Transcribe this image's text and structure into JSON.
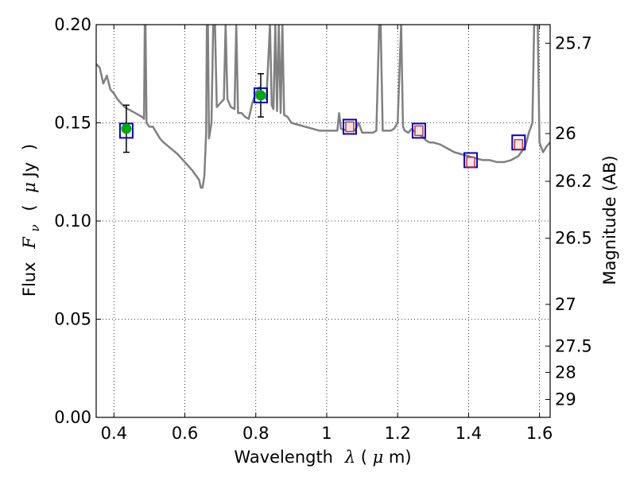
{
  "chart_data": {
    "type": "scatter",
    "xlabel": {
      "pre": "Wavelength",
      "sym": "λ",
      "open": " (",
      "mu": "μ",
      "unit": "m)"
    },
    "ylabel": {
      "pre": "Flux",
      "F": "F",
      "sub": "ν",
      "open": "(",
      "mu": "μ",
      "unit": "Jy",
      "close": ")"
    },
    "ylabel_right": "Magnitude (AB)",
    "xlim": [
      0.35,
      1.63
    ],
    "ylim": [
      0.0,
      0.2
    ],
    "xticks": [
      0.4,
      0.6,
      0.8,
      1.0,
      1.2,
      1.4,
      1.6
    ],
    "xtick_labels": [
      "0.4",
      "0.6",
      "0.8",
      "1",
      "1.2",
      "1.4",
      "1.6"
    ],
    "yticks": [
      0.0,
      0.05,
      0.1,
      0.15,
      0.2
    ],
    "ytick_labels": [
      "0.00",
      "0.05",
      "0.10",
      "0.15",
      "0.20"
    ],
    "right_ticks": [
      {
        "label": "25.7",
        "mag": 25.7
      },
      {
        "label": "26",
        "mag": 26.0
      },
      {
        "label": "26.2",
        "mag": 26.2
      },
      {
        "label": "26.5",
        "mag": 26.5
      },
      {
        "label": "27",
        "mag": 27.0
      },
      {
        "label": "27.5",
        "mag": 27.5
      },
      {
        "label": "28",
        "mag": 28.0
      },
      {
        "label": "29",
        "mag": 29.0
      }
    ],
    "grid": true,
    "series": [
      {
        "role": "model-spectrum",
        "style": "line",
        "color": "#808080",
        "points": [
          [
            0.35,
            0.18
          ],
          [
            0.36,
            0.178
          ],
          [
            0.37,
            0.17
          ],
          [
            0.38,
            0.174
          ],
          [
            0.39,
            0.167
          ],
          [
            0.4,
            0.165
          ],
          [
            0.41,
            0.162
          ],
          [
            0.42,
            0.16
          ],
          [
            0.43,
            0.158
          ],
          [
            0.44,
            0.157
          ],
          [
            0.45,
            0.156
          ],
          [
            0.46,
            0.155
          ],
          [
            0.47,
            0.154
          ],
          [
            0.48,
            0.153
          ],
          [
            0.485,
            0.152
          ],
          [
            0.487,
            0.2
          ],
          [
            0.489,
            0.2
          ],
          [
            0.492,
            0.15
          ],
          [
            0.5,
            0.148
          ],
          [
            0.51,
            0.148
          ],
          [
            0.52,
            0.145
          ],
          [
            0.53,
            0.142
          ],
          [
            0.54,
            0.14
          ],
          [
            0.56,
            0.137
          ],
          [
            0.58,
            0.134
          ],
          [
            0.6,
            0.13
          ],
          [
            0.62,
            0.126
          ],
          [
            0.64,
            0.121
          ],
          [
            0.645,
            0.117
          ],
          [
            0.65,
            0.117
          ],
          [
            0.655,
            0.123
          ],
          [
            0.66,
            0.145
          ],
          [
            0.662,
            0.2
          ],
          [
            0.665,
            0.2
          ],
          [
            0.668,
            0.142
          ],
          [
            0.675,
            0.15
          ],
          [
            0.68,
            0.2
          ],
          [
            0.685,
            0.2
          ],
          [
            0.69,
            0.158
          ],
          [
            0.7,
            0.16
          ],
          [
            0.71,
            0.162
          ],
          [
            0.715,
            0.2
          ],
          [
            0.72,
            0.162
          ],
          [
            0.73,
            0.158
          ],
          [
            0.74,
            0.157
          ],
          [
            0.745,
            0.2
          ],
          [
            0.75,
            0.155
          ],
          [
            0.76,
            0.155
          ],
          [
            0.77,
            0.153
          ],
          [
            0.78,
            0.152
          ],
          [
            0.79,
            0.16
          ],
          [
            0.8,
            0.165
          ],
          [
            0.81,
            0.168
          ],
          [
            0.82,
            0.165
          ],
          [
            0.83,
            0.162
          ],
          [
            0.84,
            0.2
          ],
          [
            0.845,
            0.159
          ],
          [
            0.85,
            0.157
          ],
          [
            0.855,
            0.2
          ],
          [
            0.86,
            0.156
          ],
          [
            0.865,
            0.2
          ],
          [
            0.87,
            0.155
          ],
          [
            0.875,
            0.2
          ],
          [
            0.88,
            0.154
          ],
          [
            0.89,
            0.153
          ],
          [
            0.9,
            0.15
          ],
          [
            0.92,
            0.149
          ],
          [
            0.94,
            0.148
          ],
          [
            0.96,
            0.147
          ],
          [
            0.98,
            0.146
          ],
          [
            1.0,
            0.146
          ],
          [
            1.02,
            0.146
          ],
          [
            1.03,
            0.146
          ],
          [
            1.035,
            0.155
          ],
          [
            1.04,
            0.147
          ],
          [
            1.06,
            0.146
          ],
          [
            1.08,
            0.146
          ],
          [
            1.09,
            0.15
          ],
          [
            1.1,
            0.145
          ],
          [
            1.11,
            0.145
          ],
          [
            1.12,
            0.145
          ],
          [
            1.13,
            0.145
          ],
          [
            1.14,
            0.146
          ],
          [
            1.148,
            0.2
          ],
          [
            1.152,
            0.2
          ],
          [
            1.158,
            0.146
          ],
          [
            1.17,
            0.146
          ],
          [
            1.18,
            0.146
          ],
          [
            1.19,
            0.147
          ],
          [
            1.2,
            0.15
          ],
          [
            1.21,
            0.2
          ],
          [
            1.215,
            0.148
          ],
          [
            1.22,
            0.146
          ],
          [
            1.23,
            0.145
          ],
          [
            1.24,
            0.147
          ],
          [
            1.25,
            0.145
          ],
          [
            1.26,
            0.144
          ],
          [
            1.27,
            0.143
          ],
          [
            1.28,
            0.141
          ],
          [
            1.29,
            0.14
          ],
          [
            1.3,
            0.14
          ],
          [
            1.32,
            0.139
          ],
          [
            1.34,
            0.137
          ],
          [
            1.36,
            0.135
          ],
          [
            1.38,
            0.134
          ],
          [
            1.4,
            0.133
          ],
          [
            1.42,
            0.132
          ],
          [
            1.44,
            0.131
          ],
          [
            1.46,
            0.131
          ],
          [
            1.48,
            0.13
          ],
          [
            1.5,
            0.13
          ],
          [
            1.52,
            0.131
          ],
          [
            1.54,
            0.133
          ],
          [
            1.56,
            0.138
          ],
          [
            1.57,
            0.145
          ],
          [
            1.58,
            0.15
          ],
          [
            1.585,
            0.2
          ],
          [
            1.595,
            0.2
          ],
          [
            1.6,
            0.14
          ],
          [
            1.61,
            0.135
          ],
          [
            1.62,
            0.138
          ],
          [
            1.63,
            0.14
          ]
        ]
      },
      {
        "role": "detections",
        "style": "marker-circle",
        "color": "#00aa00",
        "points": [
          {
            "x": 0.435,
            "y": 0.147,
            "err": 0.012
          },
          {
            "x": 0.814,
            "y": 0.164,
            "err": 0.011
          }
        ]
      },
      {
        "role": "model-band-fluxes",
        "style": "marker-square",
        "color": "#0000cc",
        "points": [
          {
            "x": 0.435,
            "y": 0.146
          },
          {
            "x": 0.814,
            "y": 0.164
          },
          {
            "x": 1.065,
            "y": 0.148
          },
          {
            "x": 1.26,
            "y": 0.146
          },
          {
            "x": 1.406,
            "y": 0.131
          },
          {
            "x": 1.541,
            "y": 0.14
          }
        ]
      },
      {
        "role": "limits",
        "style": "marker-square-small",
        "color": "#cc3333",
        "points": [
          {
            "x": 1.065,
            "y": 0.148
          },
          {
            "x": 1.26,
            "y": 0.146
          },
          {
            "x": 1.406,
            "y": 0.13
          },
          {
            "x": 1.541,
            "y": 0.139
          }
        ]
      }
    ]
  }
}
